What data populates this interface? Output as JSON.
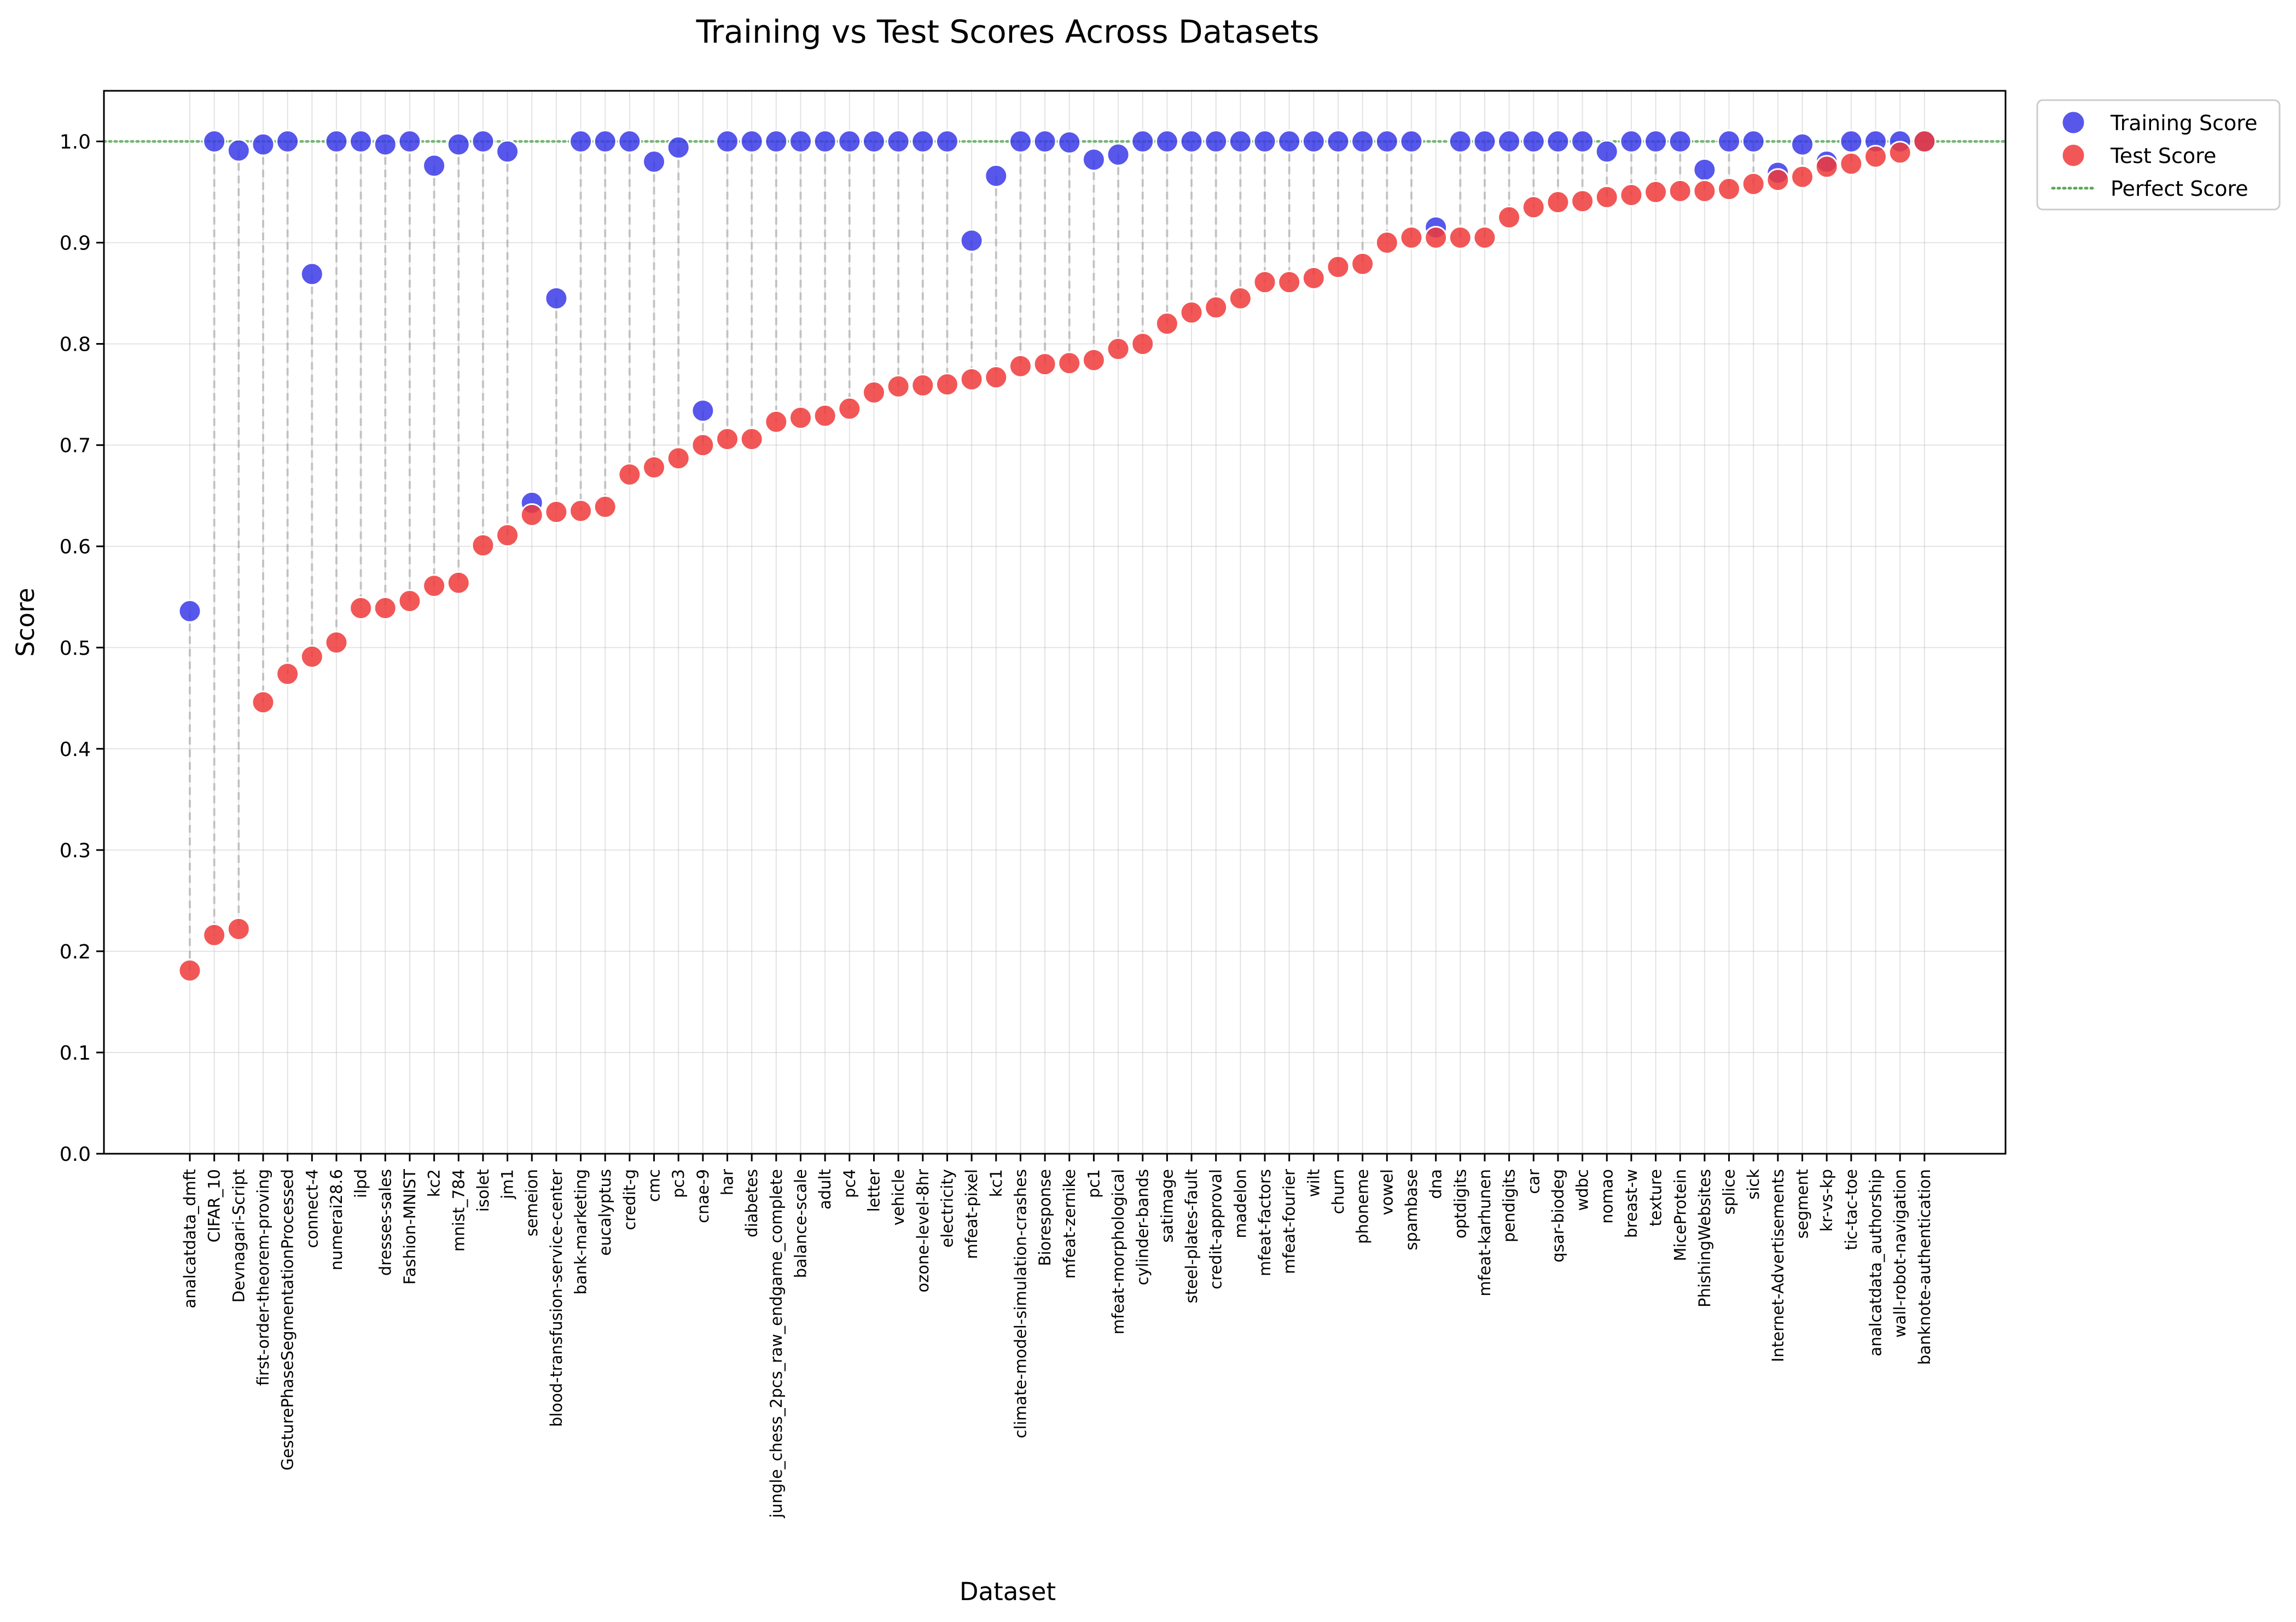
{
  "chart_data": {
    "type": "scatter",
    "title": "Training vs Test Scores Across Datasets",
    "xlabel": "Dataset",
    "ylabel": "Score",
    "ylim": [
      0.0,
      1.05
    ],
    "yticks": [
      "0.0",
      "0.1",
      "0.2",
      "0.3",
      "0.4",
      "0.5",
      "0.6",
      "0.7",
      "0.8",
      "0.9",
      "1.0"
    ],
    "grid": true,
    "legend_position": "outside top-right",
    "reference_line": {
      "label": "Perfect Score",
      "y": 1.0,
      "color": "#5aa75a"
    },
    "categories": [
      "analcatdata_dmft",
      "CIFAR_10",
      "Devnagari-Script",
      "first-order-theorem-proving",
      "GesturePhaseSegmentationProcessed",
      "connect-4",
      "numerai28.6",
      "ilpd",
      "dresses-sales",
      "Fashion-MNIST",
      "kc2",
      "mnist_784",
      "isolet",
      "jm1",
      "semeion",
      "blood-transfusion-service-center",
      "bank-marketing",
      "eucalyptus",
      "credit-g",
      "cmc",
      "pc3",
      "cnae-9",
      "har",
      "diabetes",
      "jungle_chess_2pcs_raw_endgame_complete",
      "balance-scale",
      "adult",
      "pc4",
      "letter",
      "vehicle",
      "ozone-level-8hr",
      "electricity",
      "mfeat-pixel",
      "kc1",
      "climate-model-simulation-crashes",
      "Bioresponse",
      "mfeat-zernike",
      "pc1",
      "mfeat-morphological",
      "cylinder-bands",
      "satimage",
      "steel-plates-fault",
      "credit-approval",
      "madelon",
      "mfeat-factors",
      "mfeat-fourier",
      "wilt",
      "churn",
      "phoneme",
      "vowel",
      "spambase",
      "dna",
      "optdigits",
      "mfeat-karhunen",
      "pendigits",
      "car",
      "qsar-biodeg",
      "wdbc",
      "nomao",
      "breast-w",
      "texture",
      "MiceProtein",
      "PhishingWebsites",
      "splice",
      "sick",
      "Internet-Advertisements",
      "segment",
      "kr-vs-kp",
      "tic-tac-toe",
      "analcatdata_authorship",
      "wall-robot-navigation",
      "banknote-authentication"
    ],
    "series": [
      {
        "name": "Training Score",
        "color": "#3a3ae8",
        "values": [
          0.536,
          1.0,
          0.991,
          0.997,
          1.0,
          0.869,
          1.0,
          1.0,
          0.997,
          1.0,
          0.976,
          0.997,
          1.0,
          0.99,
          0.643,
          0.845,
          1.0,
          1.0,
          1.0,
          0.98,
          0.994,
          0.734,
          1.0,
          1.0,
          1.0,
          1.0,
          1.0,
          1.0,
          1.0,
          1.0,
          1.0,
          1.0,
          0.902,
          0.966,
          1.0,
          1.0,
          0.999,
          0.982,
          0.987,
          1.0,
          1.0,
          1.0,
          1.0,
          1.0,
          1.0,
          1.0,
          1.0,
          1.0,
          1.0,
          1.0,
          1.0,
          0.915,
          1.0,
          1.0,
          1.0,
          1.0,
          1.0,
          1.0,
          0.99,
          1.0,
          1.0,
          1.0,
          0.972,
          1.0,
          1.0,
          0.969,
          0.997,
          0.98,
          1.0,
          1.0,
          1.0,
          1.0
        ]
      },
      {
        "name": "Test Score",
        "color": "#f03a3a",
        "values": [
          0.181,
          0.216,
          0.222,
          0.446,
          0.474,
          0.491,
          0.505,
          0.539,
          0.539,
          0.546,
          0.561,
          0.564,
          0.601,
          0.611,
          0.631,
          0.634,
          0.635,
          0.639,
          0.671,
          0.678,
          0.687,
          0.7,
          0.706,
          0.706,
          0.723,
          0.727,
          0.729,
          0.736,
          0.752,
          0.758,
          0.759,
          0.76,
          0.765,
          0.767,
          0.778,
          0.78,
          0.781,
          0.784,
          0.795,
          0.8,
          0.82,
          0.831,
          0.836,
          0.845,
          0.861,
          0.861,
          0.865,
          0.876,
          0.879,
          0.9,
          0.905,
          0.905,
          0.905,
          0.905,
          0.925,
          0.935,
          0.94,
          0.941,
          0.945,
          0.947,
          0.95,
          0.951,
          0.951,
          0.953,
          0.958,
          0.962,
          0.965,
          0.975,
          0.978,
          0.985,
          0.989,
          1.0
        ]
      }
    ]
  }
}
